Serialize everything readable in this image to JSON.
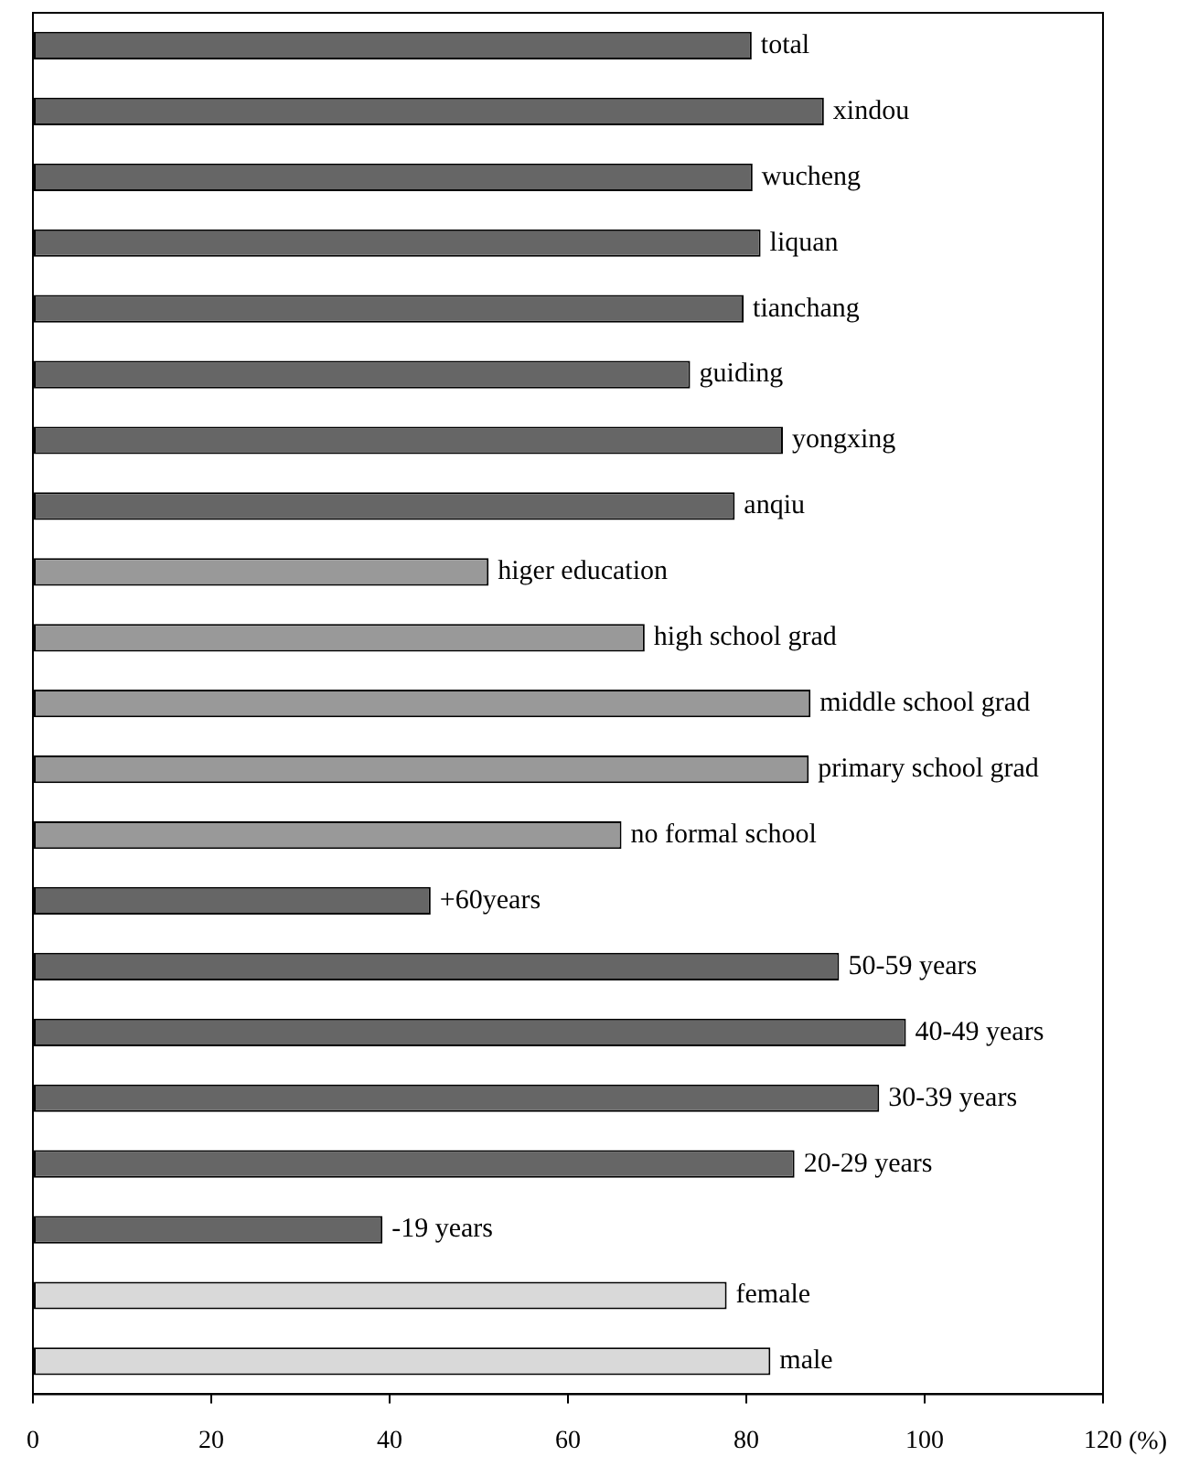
{
  "chart_data": {
    "type": "bar",
    "orientation": "horizontal",
    "xlabel": "(%)",
    "categories": [
      "total",
      "xindou",
      "wucheng",
      "liquan",
      "tianchang",
      "guiding",
      "yongxing",
      "anqiu",
      "higer education",
      "high school grad",
      "middle school grad",
      "primary school grad",
      "no formal school",
      "+60years",
      "50-59 years",
      "40-49 years",
      "30-39 years",
      "20-29 years",
      "-19 years",
      "female",
      "male"
    ],
    "values": [
      80.6,
      88.7,
      80.7,
      81.6,
      79.7,
      73.7,
      84.1,
      78.7,
      51.1,
      68.6,
      87.2,
      87.0,
      66.0,
      44.6,
      90.4,
      97.9,
      94.9,
      85.4,
      39.2,
      77.8,
      82.7
    ],
    "colors": [
      "#666666",
      "#666666",
      "#666666",
      "#666666",
      "#666666",
      "#666666",
      "#666666",
      "#666666",
      "#999999",
      "#999999",
      "#999999",
      "#999999",
      "#999999",
      "#666666",
      "#666666",
      "#666666",
      "#666666",
      "#666666",
      "#666666",
      "#d9d9d9",
      "#d9d9d9"
    ],
    "xlim": [
      0,
      120
    ],
    "xticks": [
      0,
      20,
      40,
      60,
      80,
      100,
      120
    ],
    "grid": false,
    "legend": false
  }
}
